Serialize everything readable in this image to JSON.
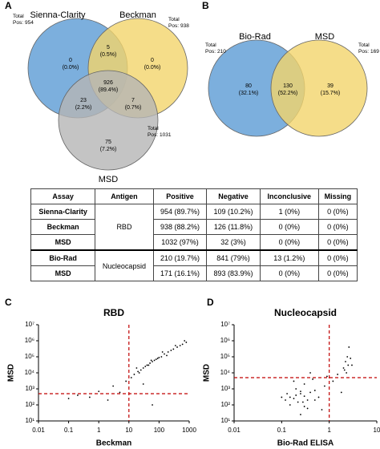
{
  "panel_labels": [
    "A",
    "B",
    "C",
    "D"
  ],
  "chart_data": [
    {
      "type": "venn",
      "total_caption": "Total",
      "pos_caption": "Pos:",
      "sets": [
        {
          "name": "Sienna-Clarity",
          "color": "#5b9bd5",
          "total": 954
        },
        {
          "name": "Beckman",
          "color": "#f2d46b",
          "total": 938
        },
        {
          "name": "MSD",
          "color": "#b5b5b5",
          "total": 1031
        }
      ],
      "regions": [
        {
          "count": 0,
          "percent": "(0.0%)"
        },
        {
          "count": 5,
          "percent": "(0.5%)"
        },
        {
          "count": 0,
          "percent": "(0.0%)"
        },
        {
          "count": 926,
          "percent": "(89.4%)"
        },
        {
          "count": 23,
          "percent": "(2.2%)"
        },
        {
          "count": 7,
          "percent": "(0.7%)"
        },
        {
          "count": 75,
          "percent": "(7.2%)"
        }
      ]
    },
    {
      "type": "venn",
      "total_caption": "Total",
      "pos_caption": "Pos:",
      "sets": [
        {
          "name": "Bio-Rad",
          "color": "#5b9bd5",
          "total": 210
        },
        {
          "name": "MSD",
          "color": "#f2d46b",
          "total": 169
        }
      ],
      "regions": [
        {
          "count": 80,
          "percent": "(32.1%)"
        },
        {
          "count": 130,
          "percent": "(52.2%)"
        },
        {
          "count": 39,
          "percent": "(15.7%)"
        }
      ]
    },
    {
      "type": "scatter",
      "title": "RBD",
      "x_label": "Beckman",
      "y_label": "MSD",
      "log_x": true,
      "log_y": true,
      "color": "#000000",
      "xlim": [
        0.01,
        1000
      ],
      "xticks": [
        0.01,
        0.1,
        1,
        10,
        100,
        1000
      ],
      "ylim": [
        10,
        10000000
      ],
      "yticks": [
        {
          "value": 10,
          "label": "10¹"
        },
        {
          "value": 100,
          "label": "10²"
        },
        {
          "value": 1000,
          "label": "10³"
        },
        {
          "value": 10000,
          "label": "10⁴"
        },
        {
          "value": 100000,
          "label": "10⁵"
        },
        {
          "value": 1000000,
          "label": "10⁶"
        },
        {
          "value": 10000000,
          "label": "10⁷"
        }
      ],
      "cutoff_x": 10,
      "cutoff_y": 500,
      "cutoff_color": "#c00000",
      "x": [
        15,
        20,
        25,
        30,
        35,
        40,
        50,
        60,
        70,
        80,
        100,
        120,
        150,
        200,
        250,
        300,
        400,
        500,
        600,
        800,
        12,
        18,
        22,
        45,
        55,
        90,
        130,
        180,
        350,
        700,
        0.2,
        0.5,
        1,
        2,
        5,
        3,
        8,
        0.1,
        30,
        60
      ],
      "y": [
        8000,
        12000,
        15000,
        20000,
        25000,
        30000,
        40000,
        50000,
        60000,
        70000,
        90000,
        100000,
        150000,
        200000,
        250000,
        300000,
        400000,
        500000,
        600000,
        800000,
        5000,
        20000,
        10000,
        30000,
        60000,
        80000,
        200000,
        120000,
        500000,
        1000000,
        400,
        300,
        700,
        200,
        600,
        1500,
        3000,
        250,
        2000,
        100
      ]
    },
    {
      "type": "scatter",
      "title": "Nucleocapsid",
      "x_label": "Bio-Rad ELISA",
      "y_label": "MSD",
      "log_x": true,
      "log_y": true,
      "color": "#000000",
      "xlim": [
        0.01,
        10
      ],
      "xticks": [
        0.01,
        0.1,
        1,
        10
      ],
      "ylim": [
        10,
        10000000
      ],
      "yticks": [
        {
          "value": 10,
          "label": "10¹"
        },
        {
          "value": 100,
          "label": "10²"
        },
        {
          "value": 1000,
          "label": "10³"
        },
        {
          "value": 10000,
          "label": "10⁴"
        },
        {
          "value": 100000,
          "label": "10⁵"
        },
        {
          "value": 1000000,
          "label": "10⁶"
        },
        {
          "value": 10000000,
          "label": "10⁷"
        }
      ],
      "cutoff_x": 1,
      "cutoff_y": 5000,
      "cutoff_color": "#c00000",
      "x": [
        0.12,
        0.15,
        0.18,
        0.2,
        0.22,
        0.25,
        0.3,
        0.35,
        0.4,
        0.5,
        0.6,
        0.15,
        0.2,
        0.25,
        0.3,
        0.13,
        0.18,
        0.28,
        0.45,
        0.8,
        2,
        2.2,
        2.5,
        2.8,
        2.3,
        2.6,
        1.5,
        1.2,
        2.1,
        2.4,
        0.3,
        0.7,
        0.9,
        0.1,
        0.5,
        0.4,
        0.25,
        0.35,
        3,
        1.8
      ],
      "y": [
        200,
        300,
        250,
        400,
        150,
        500,
        350,
        200,
        600,
        800,
        300,
        100,
        1000,
        700,
        2000,
        500,
        3000,
        150,
        4000,
        1500,
        20000,
        50000,
        30000,
        80000,
        10000,
        400000,
        8000,
        3000,
        15000,
        100000,
        80,
        50,
        6000,
        300,
        200,
        10000,
        25,
        60,
        30000,
        600
      ]
    }
  ],
  "table": {
    "headers": [
      "Assay",
      "Antigen",
      "Positive",
      "Negative",
      "Inconclusive",
      "Missing"
    ],
    "groups": [
      {
        "antigen": "RBD",
        "rows": [
          {
            "assay": "Sienna-Clarity",
            "cells": [
              "954 (89.7%)",
              "109 (10.2%)",
              "1 (0%)",
              "0 (0%)"
            ]
          },
          {
            "assay": "Beckman",
            "cells": [
              "938 (88.2%)",
              "126 (11.8%)",
              "0 (0%)",
              "0 (0%)"
            ]
          },
          {
            "assay": "MSD",
            "cells": [
              "1032 (97%)",
              "32 (3%)",
              "0 (0%)",
              "0 (0%)"
            ]
          }
        ]
      },
      {
        "antigen": "Nucleocapsid",
        "rows": [
          {
            "assay": "Bio-Rad",
            "cells": [
              "210 (19.7%)",
              "841 (79%)",
              "13 (1.2%)",
              "0 (0%)"
            ]
          },
          {
            "assay": "MSD",
            "cells": [
              "171 (16.1%)",
              "893 (83.9%)",
              "0 (0%)",
              "0 (0%)"
            ]
          }
        ]
      }
    ]
  }
}
